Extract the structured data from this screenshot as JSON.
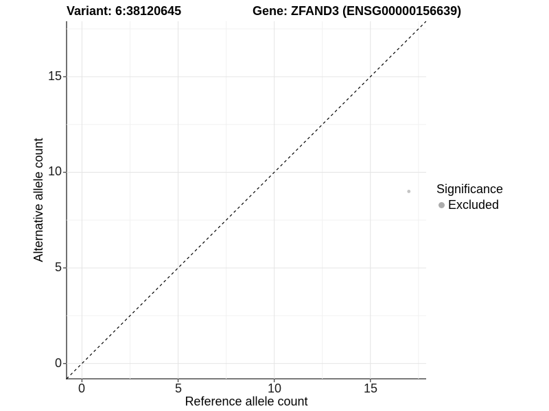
{
  "titles": {
    "variant": "Variant: 6:38120645",
    "gene": "Gene: ZFAND3 (ENSG00000156639)"
  },
  "chart_data": {
    "type": "scatter",
    "xlabel": "Reference allele count",
    "ylabel": "Alternative allele count",
    "xlim": [
      -0.8,
      17.9
    ],
    "ylim": [
      -0.8,
      17.9
    ],
    "x_ticks": [
      0,
      5,
      10,
      15
    ],
    "y_ticks": [
      0,
      5,
      10,
      15
    ],
    "x_tick_labels": [
      "0",
      "5",
      "10",
      "15"
    ],
    "y_tick_labels": [
      "0",
      "5",
      "10",
      "15"
    ],
    "minor_gridlines": [
      2.5,
      7.5,
      12.5,
      17.5
    ],
    "grid": true,
    "legend_position": "right",
    "reference_line": {
      "type": "identity y=x",
      "style": "dashed",
      "color": "#000000"
    },
    "series": [
      {
        "name": "Excluded",
        "color": "#c4c4c4",
        "point_radius": 2.4,
        "points": [
          [
            17,
            9
          ]
        ]
      }
    ]
  },
  "legend": {
    "title": "Significance",
    "entries": [
      {
        "label": "Excluded",
        "color": "#ababab"
      }
    ]
  },
  "colors": {
    "background": "#ffffff",
    "axis_line": "#4d4d4d",
    "tick_mark": "#4d4d4d",
    "grid_major": "#e4e4e4",
    "grid_minor": "#f1f1f1",
    "text": "#000000"
  }
}
